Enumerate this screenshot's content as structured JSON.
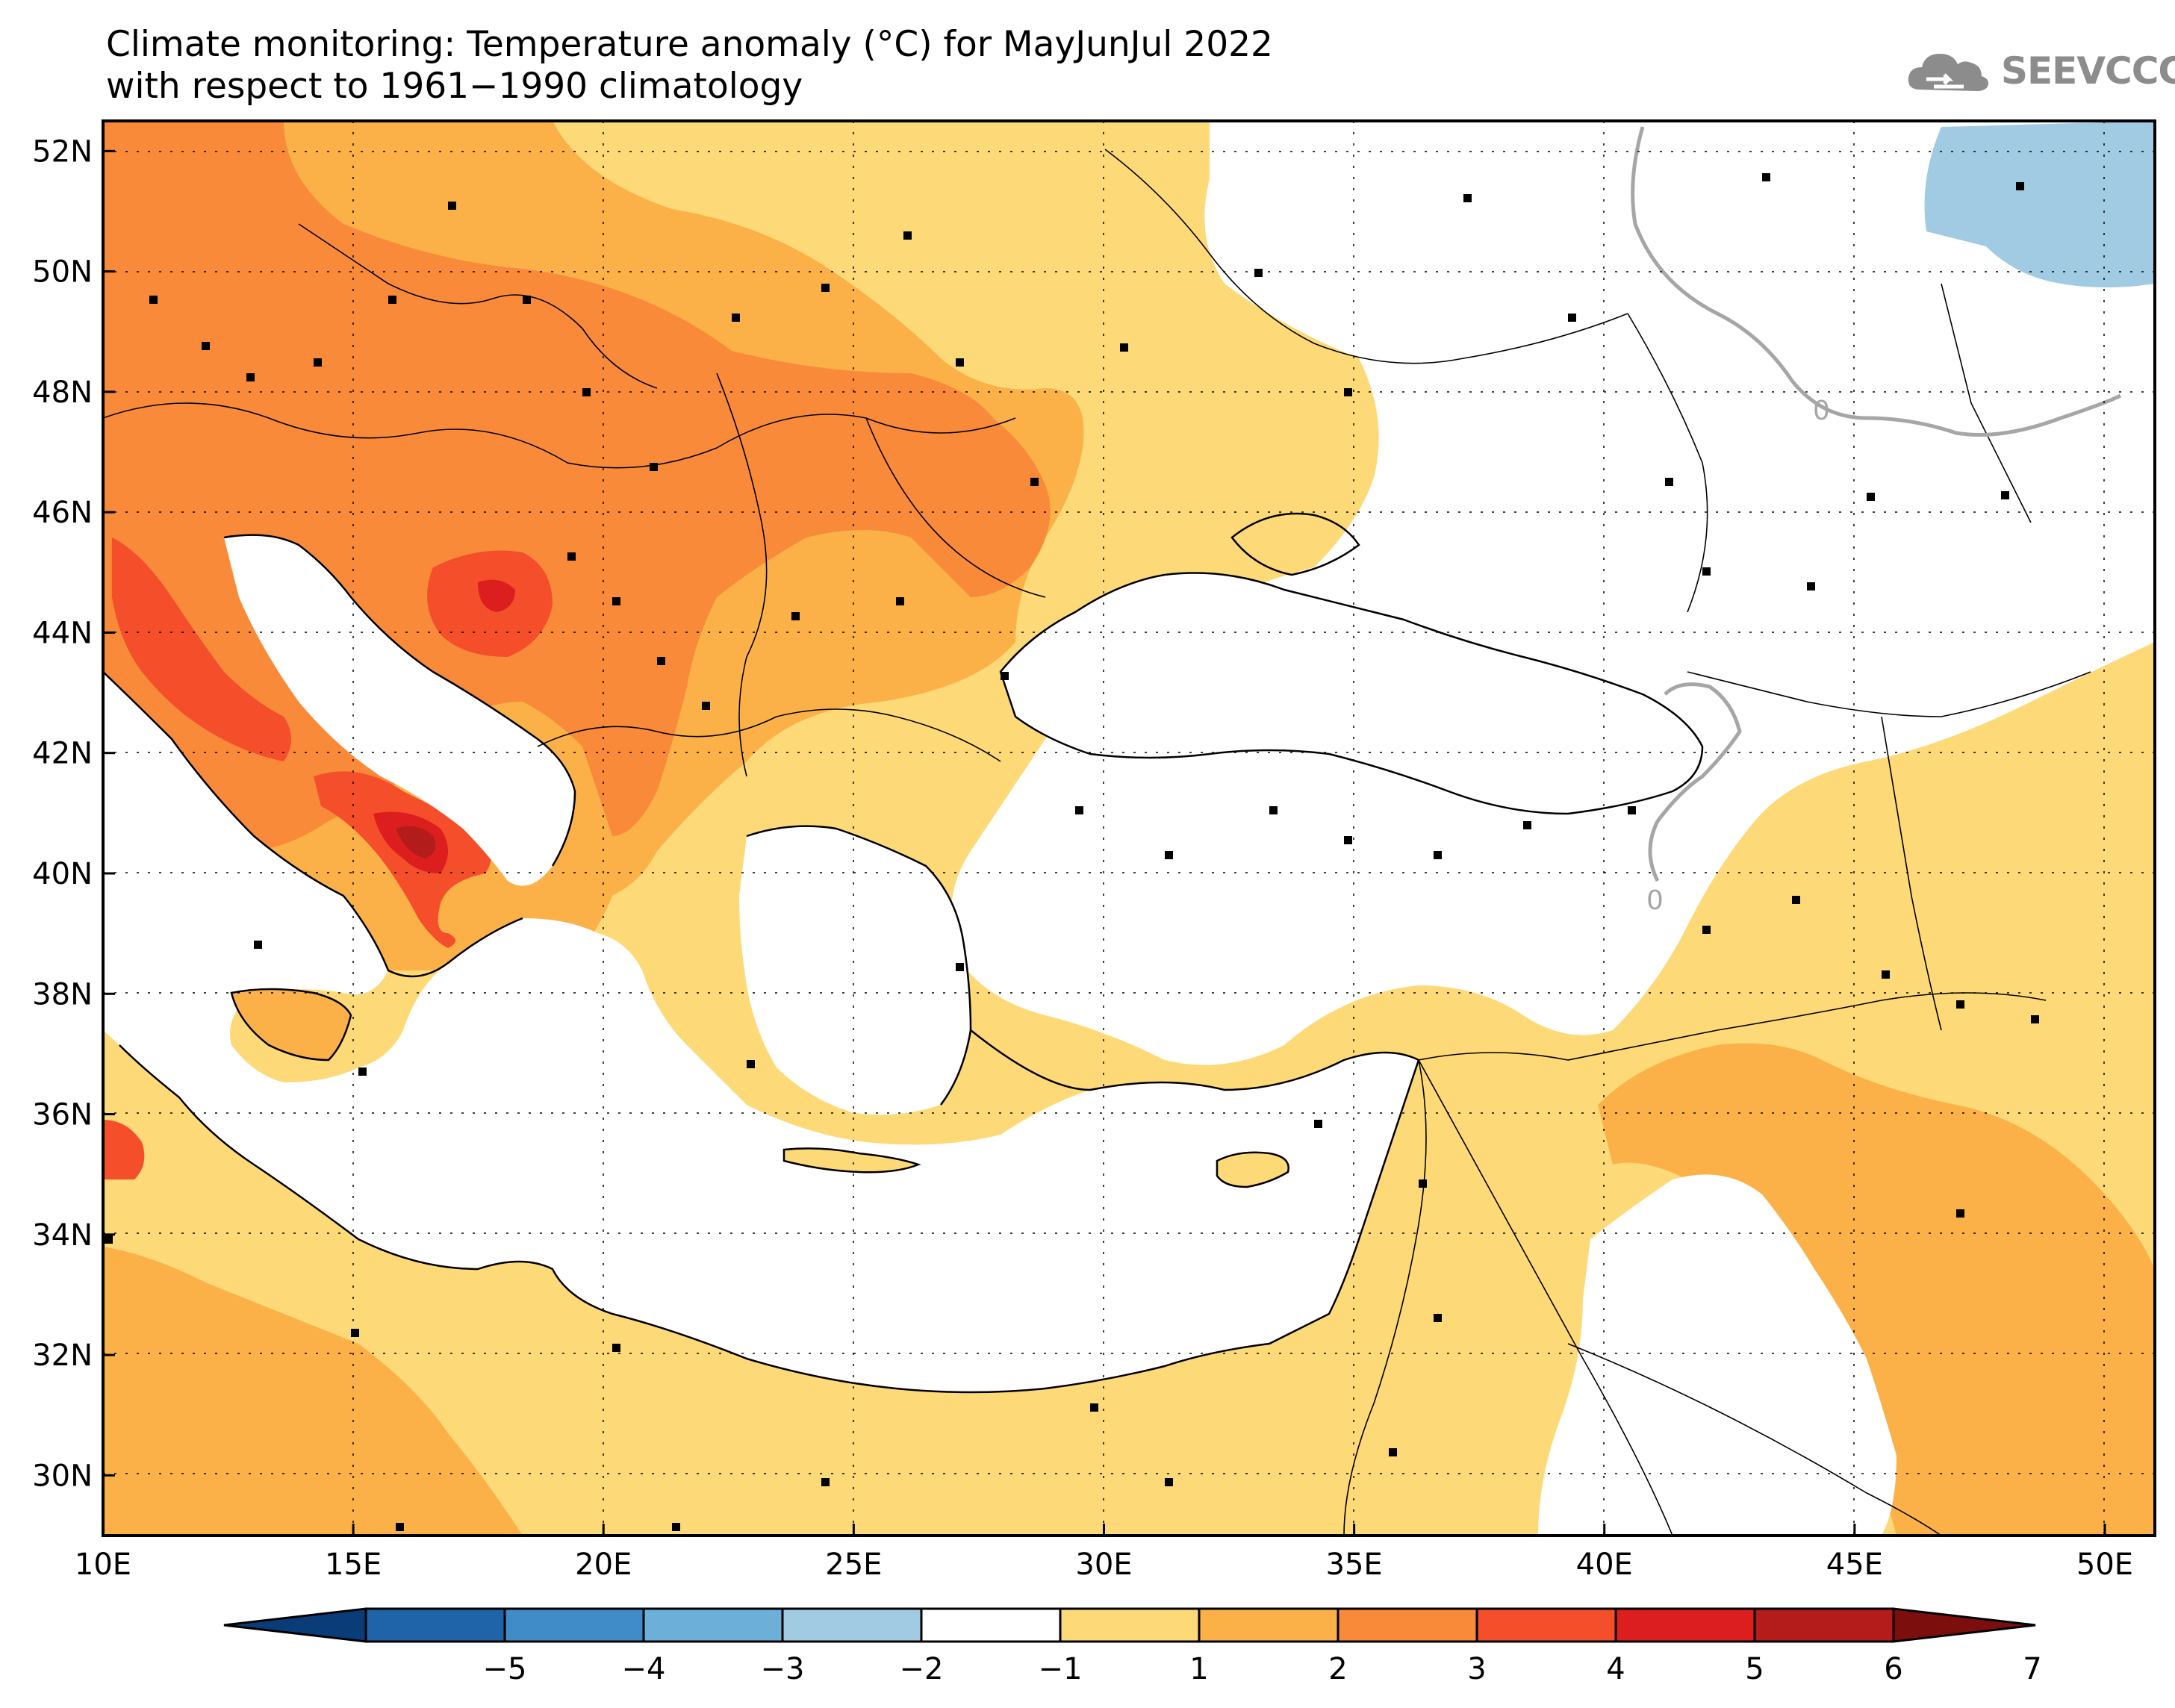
{
  "title": {
    "line1": "Climate monitoring: Temperature anomaly (°C) for MayJunJul 2022",
    "line2": "with respect to 1961−1990 climatology"
  },
  "logo": {
    "text": "SEEVCCC",
    "icon": "cloud-icon"
  },
  "map": {
    "lon_range": [
      10,
      51
    ],
    "lat_range": [
      29,
      52.5
    ],
    "lon_ticks": [
      "10E",
      "15E",
      "20E",
      "25E",
      "30E",
      "35E",
      "40E",
      "45E",
      "50E"
    ],
    "lat_ticks": [
      "52N",
      "50N",
      "48N",
      "46N",
      "44N",
      "42N",
      "40N",
      "38N",
      "36N",
      "34N",
      "32N",
      "30N"
    ],
    "contour_labels": [
      "0",
      "0"
    ],
    "gridlines": "dotted"
  },
  "colorbar": {
    "labels": [
      "−5",
      "−4",
      "−3",
      "−2",
      "−1",
      "1",
      "2",
      "3",
      "4",
      "5",
      "6",
      "7"
    ],
    "colors": [
      "#0a3c78",
      "#1f64a8",
      "#3f8cc8",
      "#6cb0da",
      "#a0cbe2",
      "#ffffff",
      "#fdd977",
      "#fbb148",
      "#f98a3a",
      "#f44e2a",
      "#dc1e1e",
      "#b41c1c",
      "#7d0e0e"
    ]
  }
}
